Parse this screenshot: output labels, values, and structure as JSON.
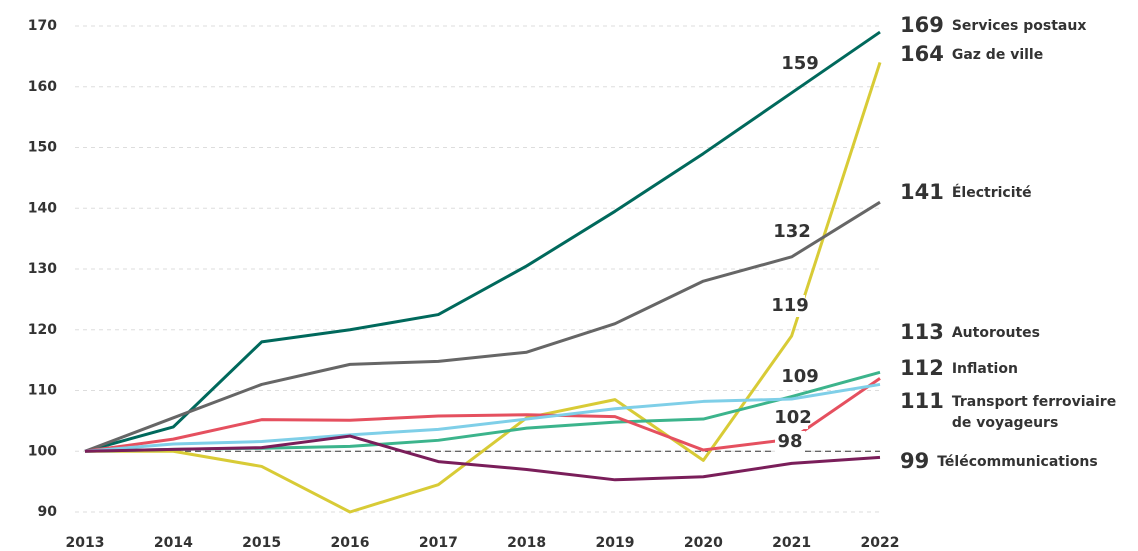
{
  "chart_data": {
    "type": "line",
    "x": [
      2013,
      2014,
      2015,
      2016,
      2017,
      2018,
      2019,
      2020,
      2021,
      2022
    ],
    "xlim": [
      2013,
      2022
    ],
    "xticks": [
      2013,
      2014,
      2015,
      2016,
      2017,
      2018,
      2019,
      2020,
      2021,
      2022
    ],
    "ylim": [
      90,
      170
    ],
    "yticks": [
      90,
      100,
      110,
      120,
      130,
      140,
      150,
      160,
      170
    ],
    "grid": true,
    "reference_line": 100,
    "series": [
      {
        "name": "Services postaux",
        "color": "#00695c",
        "values": [
          100,
          104,
          118,
          120,
          122.5,
          130.5,
          139.5,
          149,
          159,
          169
        ],
        "value_labels": [
          null,
          null,
          null,
          null,
          null,
          null,
          null,
          null,
          "159",
          "169"
        ]
      },
      {
        "name": "Gaz de ville",
        "color": "#d8cb36",
        "values": [
          100,
          100,
          97.5,
          90,
          94.5,
          105.5,
          108.5,
          98.5,
          119,
          164
        ],
        "value_labels": [
          null,
          null,
          null,
          null,
          null,
          null,
          null,
          null,
          "119",
          "164"
        ]
      },
      {
        "name": "Électricité",
        "color": "#666666",
        "values": [
          100,
          105.5,
          111,
          114.3,
          114.8,
          116.3,
          121,
          128,
          132,
          141
        ],
        "value_labels": [
          null,
          null,
          null,
          null,
          null,
          null,
          null,
          null,
          "132",
          "141"
        ]
      },
      {
        "name": "Autoroutes",
        "color": "#3cb48c",
        "values": [
          100,
          100.3,
          100.5,
          100.8,
          101.8,
          103.8,
          104.8,
          105.3,
          109,
          113
        ],
        "value_labels": [
          null,
          null,
          null,
          null,
          null,
          null,
          null,
          null,
          "109",
          "113"
        ]
      },
      {
        "name": "Inflation",
        "color": "#e5505f",
        "values": [
          100,
          102,
          105.2,
          105.1,
          105.8,
          106,
          105.7,
          100.2,
          102,
          112
        ],
        "value_labels": [
          null,
          null,
          null,
          null,
          null,
          null,
          null,
          null,
          "102",
          "112"
        ]
      },
      {
        "name": "Transport ferroviaire de voyageurs",
        "color": "#7fcfe8",
        "values": [
          100,
          101.2,
          101.6,
          102.7,
          103.6,
          105.3,
          107,
          108.2,
          108.6,
          111
        ],
        "value_labels": [
          null,
          null,
          null,
          null,
          null,
          null,
          null,
          null,
          null,
          "111"
        ]
      },
      {
        "name": "Télécommunications",
        "color": "#7a1e5a",
        "values": [
          100,
          100.3,
          100.6,
          102.5,
          98.3,
          97,
          95.3,
          95.8,
          98,
          99
        ],
        "value_labels": [
          null,
          null,
          null,
          null,
          null,
          null,
          null,
          null,
          "98",
          "99"
        ]
      }
    ]
  }
}
